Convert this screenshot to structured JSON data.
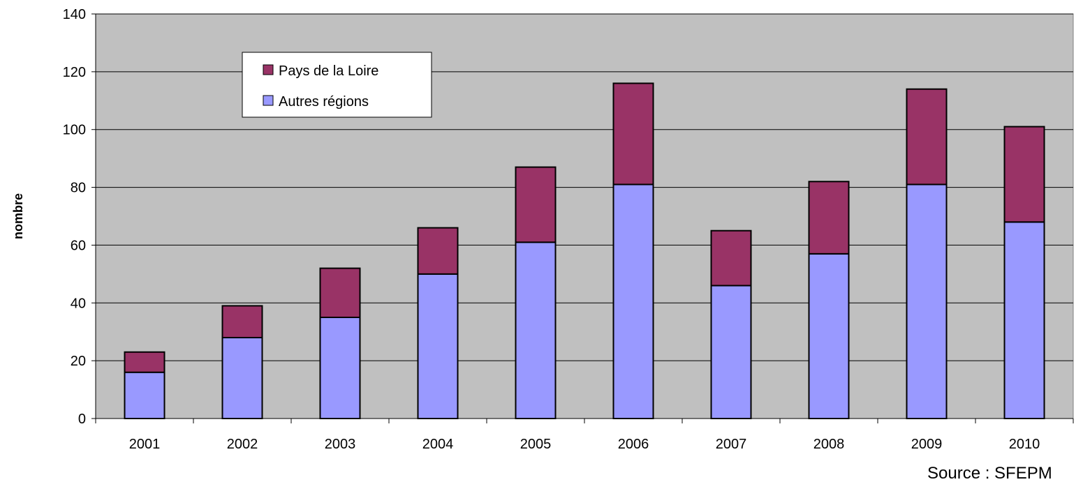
{
  "chart_data": {
    "type": "bar",
    "stacked": true,
    "categories": [
      "2001",
      "2002",
      "2003",
      "2004",
      "2005",
      "2006",
      "2007",
      "2008",
      "2009",
      "2010"
    ],
    "series": [
      {
        "name": "Autres régions",
        "color": "#9999FF",
        "values": [
          16,
          28,
          35,
          50,
          61,
          81,
          46,
          57,
          81,
          68
        ]
      },
      {
        "name": "Pays de la Loire",
        "color": "#993366",
        "values": [
          7,
          11,
          17,
          16,
          26,
          35,
          19,
          25,
          33,
          33
        ]
      }
    ],
    "legend_order": [
      "Pays de la Loire",
      "Autres régions"
    ],
    "ylabel": "nombre",
    "xlabel": "",
    "ylim": [
      0,
      140
    ],
    "yticks": [
      0,
      20,
      40,
      60,
      80,
      100,
      120,
      140
    ],
    "grid": true,
    "legend_position": "top-left",
    "plot_background": "#C0C0C0",
    "source": "Source : SFEPM"
  }
}
